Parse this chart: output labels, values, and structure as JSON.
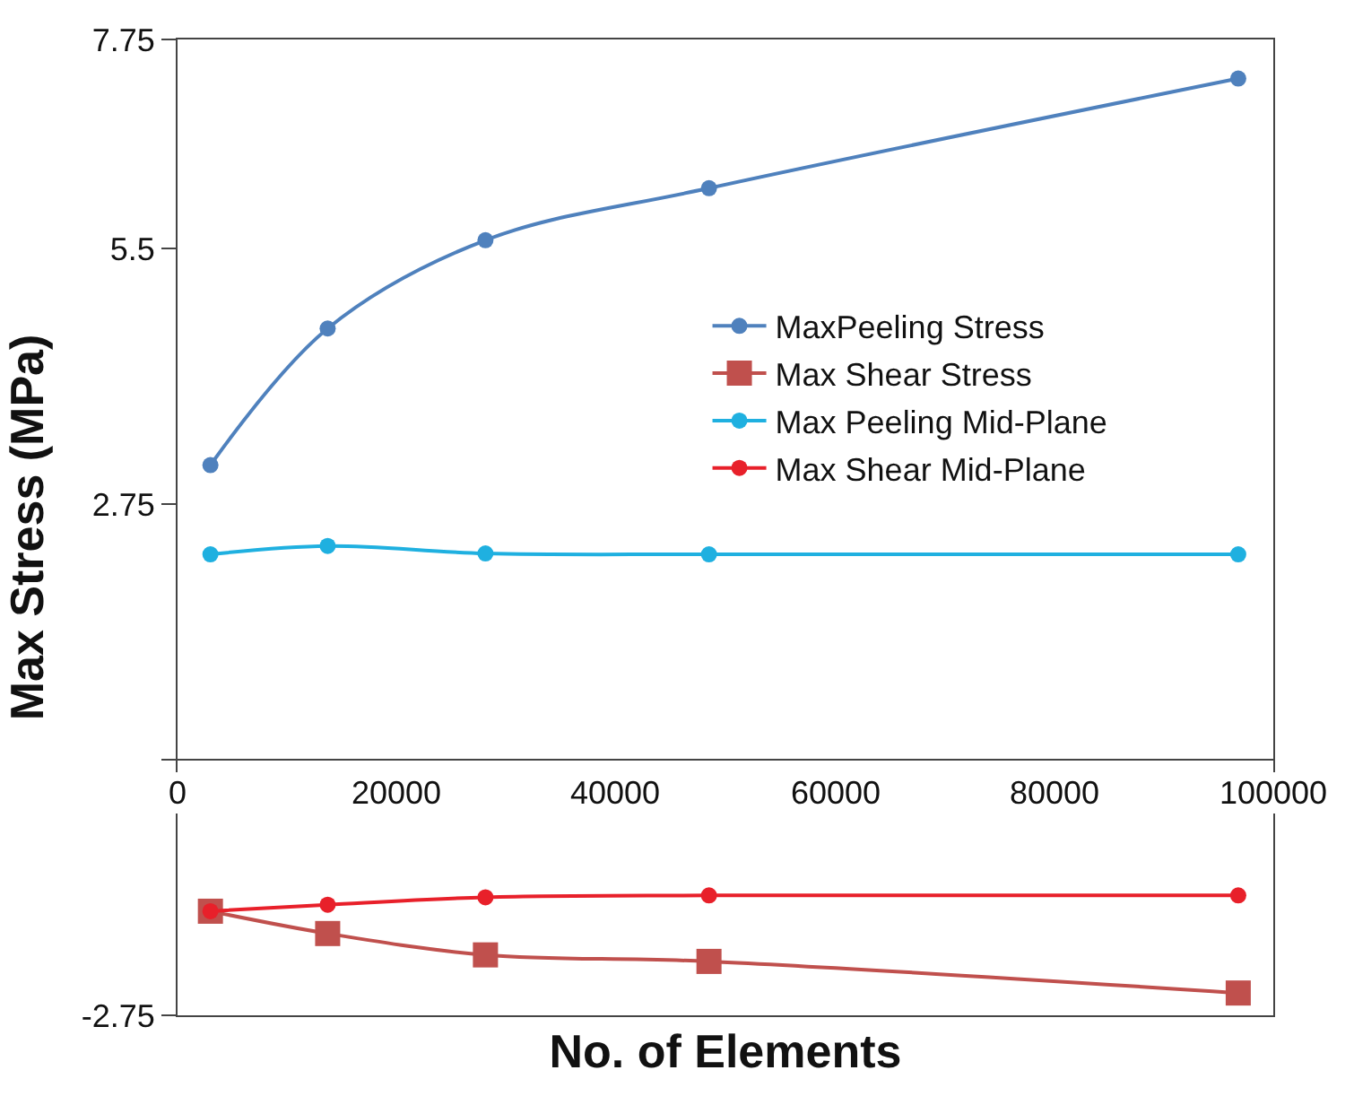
{
  "chart_data": {
    "type": "line",
    "xlabel": "No. of Elements",
    "ylabel": "Max Stress (MPa)",
    "x": [
      3000,
      13700,
      28100,
      48500,
      96800
    ],
    "series": [
      {
        "name": "MaxPeeling Stress",
        "color": "#4f81bd",
        "marker": "circle",
        "values": [
          3.17,
          4.64,
          5.59,
          6.15,
          7.33
        ]
      },
      {
        "name": "Max Shear Stress",
        "color": "#c0504d",
        "marker": "square",
        "values": [
          -1.63,
          -1.87,
          -2.1,
          -2.17,
          -2.51
        ]
      },
      {
        "name": "Max Peeling Mid-Plane",
        "color": "#1fb0e0",
        "marker": "circle",
        "values": [
          2.21,
          2.3,
          2.22,
          2.21,
          2.21
        ]
      },
      {
        "name": "Max Shear Mid-Plane",
        "color": "#e8202a",
        "marker": "circle",
        "values": [
          -1.63,
          -1.56,
          -1.48,
          -1.46,
          -1.46
        ]
      }
    ],
    "xlim": [
      0,
      100000
    ],
    "xticks": [
      0,
      20000,
      40000,
      60000,
      80000,
      100000
    ],
    "ylim": [
      -2.75,
      7.75
    ],
    "yticks": [
      {
        "value": -2.75,
        "label": "-2.75"
      },
      {
        "value": 0,
        "label": null
      },
      2.75,
      5.5,
      7.75
    ],
    "legend": "right"
  }
}
